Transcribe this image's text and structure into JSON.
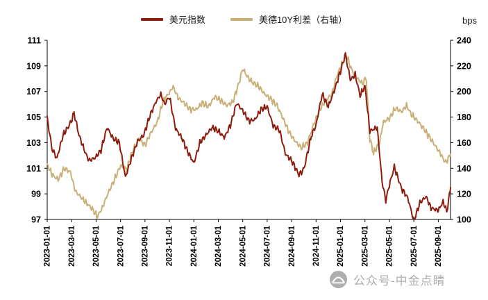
{
  "watermark": {
    "text": "公众号-中金点睛"
  },
  "chart_data": {
    "type": "line",
    "title": "",
    "legend_position": "top-center",
    "grid": false,
    "x_range": [
      0,
      33
    ],
    "x_tick_labels": [
      "2023-01-01",
      "2023-03-01",
      "2023-05-01",
      "2023-07-01",
      "2023-09-01",
      "2023-11-01",
      "2024-01-01",
      "2024-03-01",
      "2024-05-01",
      "2024-07-01",
      "2024-09-01",
      "2024-11-01",
      "2025-01-01",
      "2025-03-01",
      "2025-05-01",
      "2025-07-01",
      "2025-09-01"
    ],
    "x_tick_step_months": 2,
    "left_axis": {
      "min": 97,
      "max": 111,
      "ticks": [
        97,
        99,
        101,
        103,
        105,
        107,
        109,
        111
      ]
    },
    "right_axis": {
      "min": 100,
      "max": 240,
      "ticks": [
        100,
        120,
        140,
        160,
        180,
        200,
        220,
        240
      ],
      "unit": "bps"
    },
    "series": [
      {
        "id": "usd-index-line",
        "name": "美元指数",
        "axis": "left",
        "color": "#8c1c0e",
        "jitter": 0.28,
        "points": [
          [
            0,
            104.9
          ],
          [
            0.4,
            102.5
          ],
          [
            0.8,
            101.8
          ],
          [
            1.3,
            103.6
          ],
          [
            1.9,
            104.5
          ],
          [
            2.2,
            105.3
          ],
          [
            2.6,
            103.6
          ],
          [
            3.0,
            102.5
          ],
          [
            3.4,
            101.6
          ],
          [
            3.9,
            101.8
          ],
          [
            4.4,
            102.4
          ],
          [
            4.9,
            104.2
          ],
          [
            5.4,
            103.3
          ],
          [
            5.9,
            103.0
          ],
          [
            6.4,
            100.3
          ],
          [
            6.9,
            101.8
          ],
          [
            7.4,
            103.1
          ],
          [
            7.9,
            103.6
          ],
          [
            8.4,
            105.1
          ],
          [
            8.9,
            106.2
          ],
          [
            9.3,
            106.8
          ],
          [
            9.6,
            106.0
          ],
          [
            10.0,
            106.6
          ],
          [
            10.5,
            104.1
          ],
          [
            11.0,
            103.4
          ],
          [
            11.5,
            102.3
          ],
          [
            12.0,
            101.4
          ],
          [
            12.5,
            103.0
          ],
          [
            13.0,
            103.6
          ],
          [
            13.5,
            104.2
          ],
          [
            14.0,
            103.9
          ],
          [
            14.5,
            103.4
          ],
          [
            15.0,
            104.4
          ],
          [
            15.5,
            106.1
          ],
          [
            16.0,
            105.5
          ],
          [
            16.5,
            104.7
          ],
          [
            17.0,
            104.8
          ],
          [
            17.5,
            105.6
          ],
          [
            18.0,
            105.8
          ],
          [
            18.5,
            104.3
          ],
          [
            19.0,
            104.0
          ],
          [
            19.5,
            102.1
          ],
          [
            20.0,
            101.6
          ],
          [
            20.6,
            100.5
          ],
          [
            21.0,
            100.9
          ],
          [
            21.6,
            103.5
          ],
          [
            22.0,
            104.4
          ],
          [
            22.5,
            106.8
          ],
          [
            23.0,
            105.8
          ],
          [
            23.5,
            107.1
          ],
          [
            24.0,
            108.6
          ],
          [
            24.4,
            109.9
          ],
          [
            24.8,
            107.9
          ],
          [
            25.2,
            108.3
          ],
          [
            25.6,
            106.7
          ],
          [
            26.0,
            107.4
          ],
          [
            26.4,
            103.9
          ],
          [
            27.0,
            104.2
          ],
          [
            27.4,
            100.0
          ],
          [
            27.7,
            98.5
          ],
          [
            28.0,
            99.7
          ],
          [
            28.4,
            101.1
          ],
          [
            29.0,
            99.4
          ],
          [
            29.5,
            98.7
          ],
          [
            30.0,
            96.9
          ],
          [
            30.5,
            98.3
          ],
          [
            31.0,
            98.8
          ],
          [
            31.4,
            97.9
          ],
          [
            32.0,
            97.7
          ],
          [
            32.4,
            98.4
          ],
          [
            32.7,
            97.6
          ],
          [
            33.0,
            99.5
          ]
        ]
      },
      {
        "id": "us-de-10y-spread-line",
        "name": "美德10Y利差（右轴）",
        "axis": "right",
        "color": "#c8b078",
        "jitter": 3.0,
        "points": [
          [
            0,
            143
          ],
          [
            0.4,
            135
          ],
          [
            0.9,
            131
          ],
          [
            1.4,
            140
          ],
          [
            1.9,
            137
          ],
          [
            2.3,
            122
          ],
          [
            2.8,
            117
          ],
          [
            3.2,
            113
          ],
          [
            3.7,
            108
          ],
          [
            4.1,
            102
          ],
          [
            4.5,
            109
          ],
          [
            5.0,
            121
          ],
          [
            5.5,
            131
          ],
          [
            6.0,
            142
          ],
          [
            6.5,
            139
          ],
          [
            7.0,
            154
          ],
          [
            7.5,
            163
          ],
          [
            8.0,
            158
          ],
          [
            8.5,
            168
          ],
          [
            9.0,
            176
          ],
          [
            9.5,
            193
          ],
          [
            10.0,
            199
          ],
          [
            10.3,
            204
          ],
          [
            10.7,
            195
          ],
          [
            11.2,
            191
          ],
          [
            11.7,
            186
          ],
          [
            12.2,
            186
          ],
          [
            12.7,
            191
          ],
          [
            13.2,
            188
          ],
          [
            13.7,
            196
          ],
          [
            14.2,
            193
          ],
          [
            14.7,
            189
          ],
          [
            15.2,
            192
          ],
          [
            15.7,
            207
          ],
          [
            16.0,
            218
          ],
          [
            16.4,
            211
          ],
          [
            16.8,
            207
          ],
          [
            17.3,
            204
          ],
          [
            17.8,
            198
          ],
          [
            18.3,
            194
          ],
          [
            18.8,
            189
          ],
          [
            19.3,
            179
          ],
          [
            19.8,
            168
          ],
          [
            20.3,
            161
          ],
          [
            20.8,
            156
          ],
          [
            21.3,
            160
          ],
          [
            21.8,
            174
          ],
          [
            22.3,
            186
          ],
          [
            22.8,
            193
          ],
          [
            23.3,
            198
          ],
          [
            23.7,
            212
          ],
          [
            24.1,
            221
          ],
          [
            24.5,
            228
          ],
          [
            24.9,
            217
          ],
          [
            25.3,
            211
          ],
          [
            25.8,
            206
          ],
          [
            26.1,
            211
          ],
          [
            26.4,
            163
          ],
          [
            26.7,
            152
          ],
          [
            27.2,
            160
          ],
          [
            27.5,
            176
          ],
          [
            28.0,
            179
          ],
          [
            28.5,
            187
          ],
          [
            29.0,
            184
          ],
          [
            29.4,
            189
          ],
          [
            29.8,
            182
          ],
          [
            30.3,
            177
          ],
          [
            30.8,
            171
          ],
          [
            31.3,
            164
          ],
          [
            31.8,
            157
          ],
          [
            32.2,
            151
          ],
          [
            32.6,
            144
          ],
          [
            33.0,
            151
          ]
        ]
      }
    ]
  }
}
